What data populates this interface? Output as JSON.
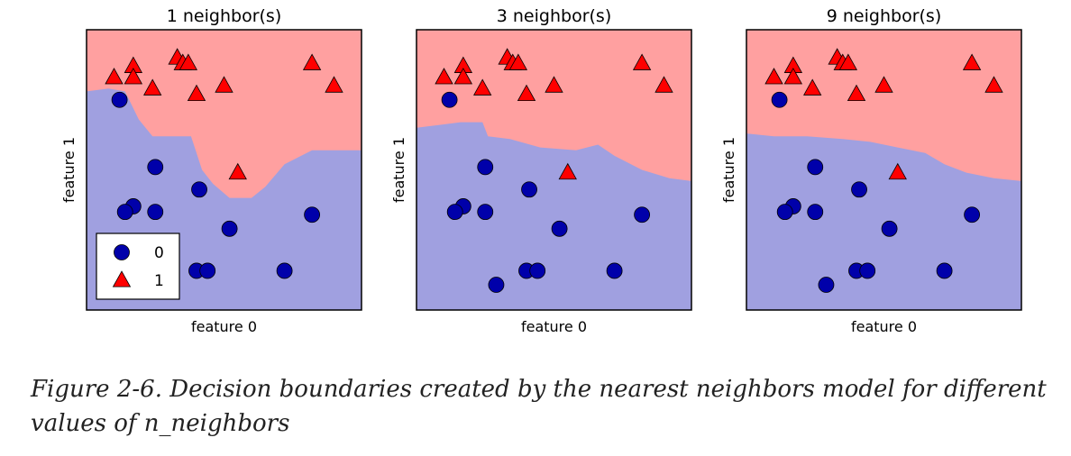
{
  "chart_data": [
    {
      "type": "scatter",
      "title": "1 neighbor(s)",
      "xlabel": "feature 0",
      "ylabel": "feature 1",
      "xlim": [
        0,
        100
      ],
      "ylim": [
        0,
        100
      ],
      "x_ticks_visible": false,
      "y_ticks_visible": false,
      "background_regions": {
        "class_1_color": "#ffa0a0",
        "class_0_color": "#a0a0e0"
      },
      "boundary": [
        [
          0,
          78
        ],
        [
          8,
          79
        ],
        [
          14,
          78
        ],
        [
          19,
          68
        ],
        [
          24,
          62
        ],
        [
          38,
          62
        ],
        [
          40,
          56
        ],
        [
          42,
          50
        ],
        [
          46,
          45
        ],
        [
          52,
          40
        ],
        [
          60,
          40
        ],
        [
          65,
          44
        ],
        [
          72,
          52
        ],
        [
          82,
          57
        ],
        [
          92,
          57
        ],
        [
          100,
          57
        ]
      ],
      "legend": {
        "placement": "lower-left",
        "entries": [
          "0",
          "1"
        ]
      },
      "series": [
        {
          "name": "0",
          "marker": "circle",
          "color": "#0000aa",
          "points": [
            [
              12,
              75
            ],
            [
              25,
              51
            ],
            [
              17,
              37
            ],
            [
              14,
              35
            ],
            [
              25,
              35
            ],
            [
              41,
              43
            ],
            [
              52,
              29
            ],
            [
              82,
              34
            ],
            [
              40,
              14
            ],
            [
              44,
              14
            ],
            [
              72,
              14
            ]
          ]
        },
        {
          "name": "1",
          "marker": "triangle",
          "color": "#ff0000",
          "points": [
            [
              10,
              83
            ],
            [
              17,
              87
            ],
            [
              17,
              83
            ],
            [
              24,
              79
            ],
            [
              33,
              90
            ],
            [
              35,
              88
            ],
            [
              37,
              88
            ],
            [
              40,
              77
            ],
            [
              50,
              80
            ],
            [
              55,
              49
            ],
            [
              82,
              88
            ],
            [
              90,
              80
            ]
          ]
        }
      ]
    },
    {
      "type": "scatter",
      "title": "3 neighbor(s)",
      "xlabel": "feature 0",
      "ylabel": "feature 1",
      "xlim": [
        0,
        100
      ],
      "ylim": [
        0,
        100
      ],
      "x_ticks_visible": false,
      "y_ticks_visible": false,
      "background_regions": {
        "class_1_color": "#ffa0a0",
        "class_0_color": "#a0a0e0"
      },
      "boundary": [
        [
          0,
          65
        ],
        [
          8,
          66
        ],
        [
          16,
          67
        ],
        [
          24,
          67
        ],
        [
          26,
          62
        ],
        [
          34,
          61
        ],
        [
          45,
          58
        ],
        [
          58,
          57
        ],
        [
          66,
          59
        ],
        [
          72,
          55
        ],
        [
          82,
          50
        ],
        [
          92,
          47
        ],
        [
          100,
          46
        ]
      ],
      "series": [
        {
          "name": "0",
          "marker": "circle",
          "color": "#0000aa",
          "points": [
            [
              12,
              75
            ],
            [
              25,
              51
            ],
            [
              17,
              37
            ],
            [
              14,
              35
            ],
            [
              25,
              35
            ],
            [
              41,
              43
            ],
            [
              52,
              29
            ],
            [
              82,
              34
            ],
            [
              40,
              14
            ],
            [
              44,
              14
            ],
            [
              72,
              14
            ],
            [
              29,
              9
            ]
          ]
        },
        {
          "name": "1",
          "marker": "triangle",
          "color": "#ff0000",
          "points": [
            [
              10,
              83
            ],
            [
              17,
              87
            ],
            [
              17,
              83
            ],
            [
              24,
              79
            ],
            [
              33,
              90
            ],
            [
              35,
              88
            ],
            [
              37,
              88
            ],
            [
              40,
              77
            ],
            [
              50,
              80
            ],
            [
              55,
              49
            ],
            [
              82,
              88
            ],
            [
              90,
              80
            ]
          ]
        }
      ]
    },
    {
      "type": "scatter",
      "title": "9 neighbor(s)",
      "xlabel": "feature 0",
      "ylabel": "feature 1",
      "xlim": [
        0,
        100
      ],
      "ylim": [
        0,
        100
      ],
      "x_ticks_visible": false,
      "y_ticks_visible": false,
      "background_regions": {
        "class_1_color": "#ffa0a0",
        "class_0_color": "#a0a0e0"
      },
      "boundary": [
        [
          0,
          63
        ],
        [
          10,
          62
        ],
        [
          22,
          62
        ],
        [
          35,
          61
        ],
        [
          45,
          60
        ],
        [
          55,
          58
        ],
        [
          65,
          56
        ],
        [
          72,
          52
        ],
        [
          80,
          49
        ],
        [
          90,
          47
        ],
        [
          100,
          46
        ]
      ],
      "series": [
        {
          "name": "0",
          "marker": "circle",
          "color": "#0000aa",
          "points": [
            [
              12,
              75
            ],
            [
              25,
              51
            ],
            [
              17,
              37
            ],
            [
              14,
              35
            ],
            [
              25,
              35
            ],
            [
              41,
              43
            ],
            [
              52,
              29
            ],
            [
              82,
              34
            ],
            [
              40,
              14
            ],
            [
              44,
              14
            ],
            [
              72,
              14
            ],
            [
              29,
              9
            ]
          ]
        },
        {
          "name": "1",
          "marker": "triangle",
          "color": "#ff0000",
          "points": [
            [
              10,
              83
            ],
            [
              17,
              87
            ],
            [
              17,
              83
            ],
            [
              24,
              79
            ],
            [
              33,
              90
            ],
            [
              35,
              88
            ],
            [
              37,
              88
            ],
            [
              40,
              77
            ],
            [
              50,
              80
            ],
            [
              55,
              49
            ],
            [
              82,
              88
            ],
            [
              90,
              80
            ]
          ]
        }
      ]
    }
  ],
  "caption": "Figure 2-6. Decision boundaries created by the nearest neighbors model for different values of n_neighbors"
}
